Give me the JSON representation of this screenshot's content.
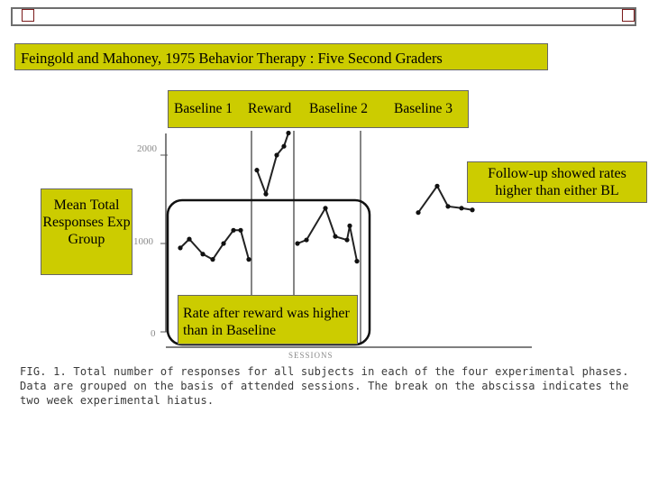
{
  "slide": {
    "title": "Feingold and Mahoney,  1975 Behavior Therapy :  Five Second Graders",
    "y_label": "Mean Total Responses Exp Group",
    "followup_note": "Follow-up showed rates higher than either BL",
    "rate_note": "Rate after reward was higher than in Baseline",
    "colors": {
      "callout": "#cccc00",
      "frame": "#6e6e6e",
      "corner_box": "#7a1a1a"
    }
  },
  "scan": {
    "ytick_top": "2000",
    "ytick_mid": "1000",
    "ytick_zero": "0",
    "xlabel": "SESSIONS",
    "caption": "FIG. 1. Total number of responses for all subjects in each of the four experimental phases. Data are grouped on the basis of attended sessions. The break on the abscissa indicates the two week experimental hiatus."
  },
  "chart_data": {
    "type": "line",
    "xlabel": "SESSIONS",
    "ylabel": "Mean Total Responses Exp Group",
    "ylim": [
      0,
      2000
    ],
    "y_ticks": [
      "0",
      "1000",
      "2000"
    ],
    "phases": [
      "Baseline 1",
      "Reward",
      "Baseline 2",
      "Baseline 3"
    ],
    "series": [
      {
        "phase": "Baseline 1",
        "x": [
          1,
          2,
          3,
          4,
          5,
          6,
          7,
          8
        ],
        "y": [
          950,
          1050,
          880,
          820,
          1000,
          1150,
          1150,
          820
        ]
      },
      {
        "phase": "Reward",
        "x": [
          9,
          10,
          11,
          12,
          13
        ],
        "y": [
          1830,
          1560,
          2000,
          2100,
          2250
        ]
      },
      {
        "phase": "Baseline 2",
        "x": [
          14,
          15,
          16,
          17,
          18,
          19,
          20
        ],
        "y": [
          1000,
          1040,
          1400,
          1080,
          1040,
          1200,
          800
        ]
      },
      {
        "phase": "Baseline 3",
        "x": [
          21,
          22,
          23,
          24,
          25
        ],
        "y": [
          1350,
          1650,
          1420,
          1400,
          1380
        ]
      }
    ],
    "grid": false
  }
}
